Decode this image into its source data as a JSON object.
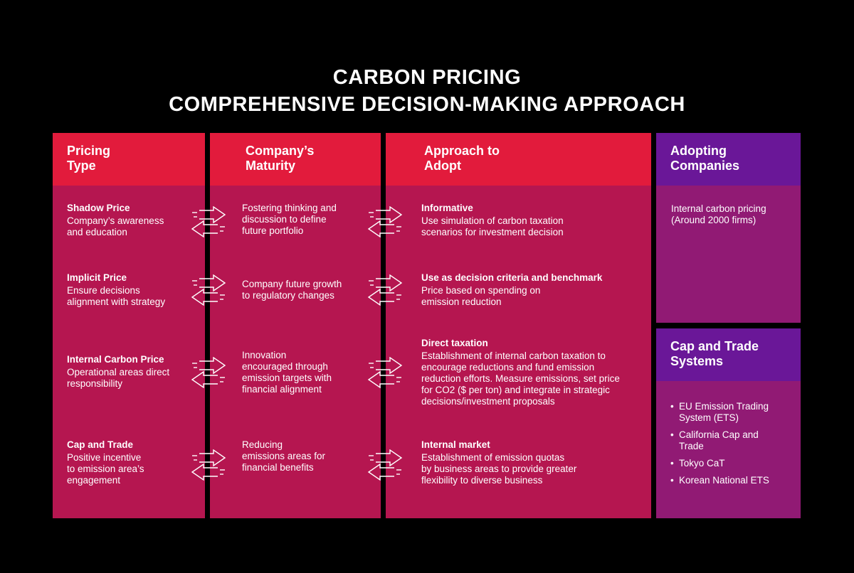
{
  "title": {
    "line1": "CARBON PRICING",
    "line2": "COMPREHENSIVE DECISION-MAKING APPROACH"
  },
  "columns": {
    "pricing_type": {
      "header": [
        "Pricing",
        "Type"
      ],
      "items": [
        {
          "title": "Shadow Price",
          "lines": [
            "Company’s awareness",
            "and education"
          ]
        },
        {
          "title": "Implicit Price",
          "lines": [
            "Ensure decisions",
            "alignment with strategy"
          ]
        },
        {
          "title": "Internal Carbon Price",
          "lines": [
            "Operational areas direct",
            "responsibility"
          ]
        },
        {
          "title": "Cap and Trade",
          "lines": [
            "Positive incentive",
            "to emission area’s",
            "engagement"
          ]
        }
      ]
    },
    "maturity": {
      "header": [
        "Company’s",
        "Maturity"
      ],
      "items": [
        {
          "lines": [
            "Fostering thinking and",
            "discussion to define",
            "future portfolio"
          ]
        },
        {
          "lines": [
            "Company future growth",
            "to regulatory changes"
          ]
        },
        {
          "lines": [
            "Innovation",
            "encouraged through",
            "emission targets with",
            "financial alignment"
          ]
        },
        {
          "lines": [
            "Reducing",
            "emissions areas for",
            "financial benefits"
          ]
        }
      ]
    },
    "approach": {
      "header": [
        "Approach to",
        "Adopt"
      ],
      "items": [
        {
          "title": "Informative",
          "lines": [
            "Use simulation of carbon taxation",
            "scenarios for investment decision"
          ]
        },
        {
          "title": "Use as decision criteria and benchmark",
          "lines": [
            "Price based on spending on",
            "emission reduction"
          ]
        },
        {
          "title": "Direct taxation",
          "lines": [
            "Establishment of internal carbon taxation to",
            "encourage reductions and fund emission",
            "reduction efforts. Measure emissions, set price",
            "for CO2 ($ per ton) and integrate in strategic",
            "decisions/investment proposals"
          ]
        },
        {
          "title": "Internal market",
          "lines": [
            "Establishment of emission quotas",
            "by business areas to provide greater",
            "flexibility to diverse business"
          ]
        }
      ]
    },
    "adopting": {
      "header": [
        "Adopting",
        "Companies"
      ],
      "lines": [
        "Internal carbon pricing",
        "(Around 2000 firms)"
      ]
    },
    "cap_trade": {
      "header": [
        "Cap and Trade",
        "Systems"
      ],
      "bullet": "•",
      "items": [
        [
          "EU Emission Trading",
          "System (ETS)"
        ],
        [
          "California Cap and",
          "Trade"
        ],
        [
          "Tokyo CaT"
        ],
        [
          "Korean National ETS"
        ]
      ]
    }
  },
  "colors": {
    "background": "#000000",
    "red_header": "#e21b3c",
    "red_body": "#b51650",
    "purple_header": "#6a1798",
    "purple_body": "#911a74"
  },
  "icons": {
    "connector": "double-arrow-icon"
  }
}
